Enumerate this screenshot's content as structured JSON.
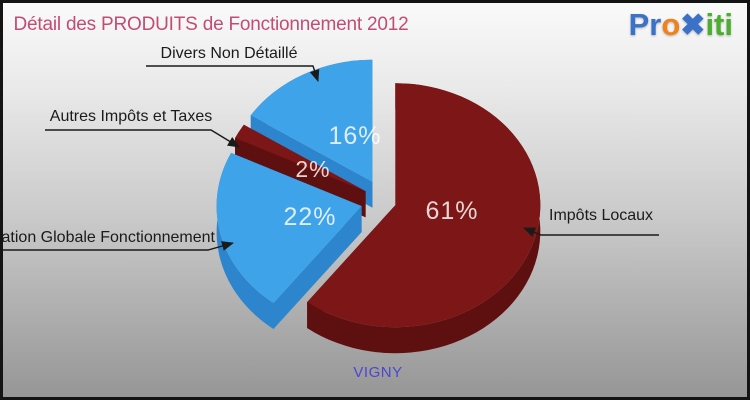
{
  "header": {
    "title": "Détail des PRODUITS de Fonctionnement 2012"
  },
  "logo": {
    "text_blue": "Pr",
    "text_orange": "o",
    "text_x": "✖",
    "text_green": "iti"
  },
  "footer": {
    "commune": "VIGNY"
  },
  "colors": {
    "title_pink": "#c14d74",
    "commune_blue": "#4947d3",
    "pie_red": "#7d1616",
    "pie_red_side": "#5e0f0f",
    "pie_blue": "#3fa3ea",
    "pie_blue_side": "#2c85cd",
    "callout_line": "#1a1a1a"
  },
  "chart_data": {
    "type": "pie",
    "title": "Détail des PRODUITS de Fonctionnement 2012",
    "subtitle": "VIGNY",
    "style": "3d-exploded",
    "start_angle_deg": 0,
    "direction": "clockwise",
    "legend_position": "callout-labels",
    "slices": [
      {
        "label": "Impôts Locaux",
        "value": 61,
        "pct_label": "61%",
        "color": "#7d1616",
        "side_color": "#5e0f0f"
      },
      {
        "label": "Dotation Globale Fonctionnement",
        "value": 22,
        "pct_label": "22%",
        "color": "#3fa3ea",
        "side_color": "#2c85cd"
      },
      {
        "label": "Autres Impôts et Taxes",
        "value": 2,
        "pct_label": "2%",
        "color": "#7d1616",
        "side_color": "#5e0f0f"
      },
      {
        "label": "Divers Non Détaillé",
        "value": 16,
        "pct_label": "16%",
        "color": "#3fa3ea",
        "side_color": "#2c85cd"
      }
    ]
  }
}
